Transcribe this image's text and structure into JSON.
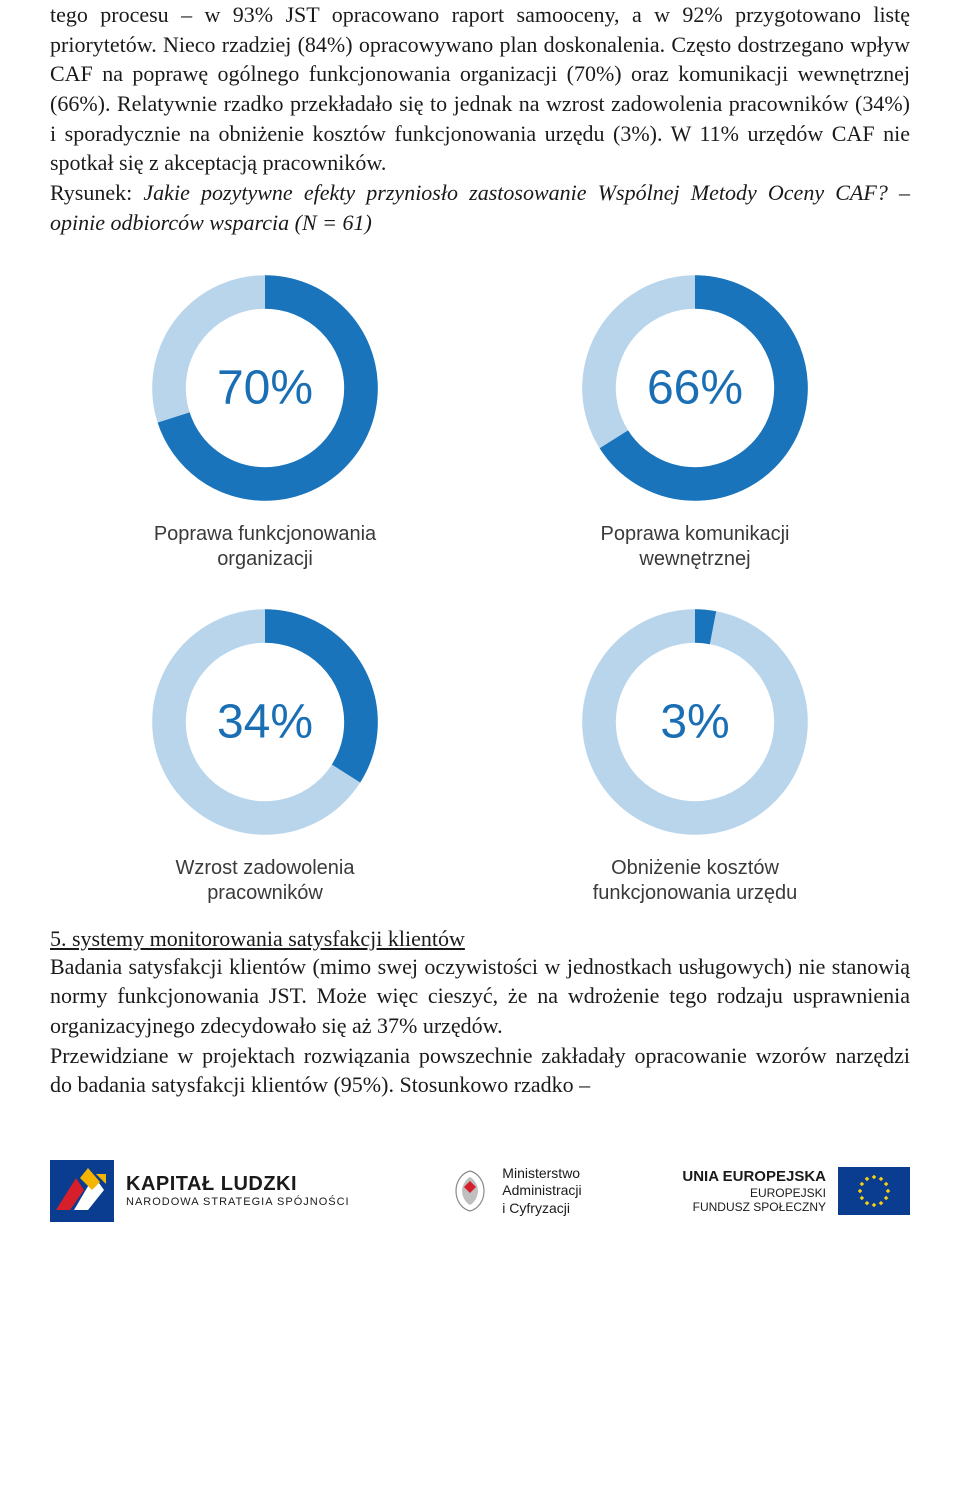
{
  "paragraph1": "tego procesu – w 93% JST opracowano raport samooceny, a w 92% przygotowano listę priorytetów. Nieco rzadziej (84%) opracowywano plan doskonalenia. Często dostrzegano wpływ CAF na poprawę ogólnego funkcjonowania organizacji (70%) oraz komunikacji wewnętrznej (66%). Relatywnie rzadko przekładało się to jednak na wzrost zadowolenia pracowników (34%) i sporadycznie na obniżenie kosztów funkcjonowania urzędu (3%). W 11% urzędów CAF nie spotkał się z akceptacją pracowników.",
  "caption_lead": "Rysunek: ",
  "caption_italic": "Jakie pozytywne efekty przyniosło zastosowanie Wspólnej Metody Oceny CAF? – opinie odbiorców wsparcia (N = 61)",
  "chart": {
    "ring_bg": "#b9d5ec",
    "ring_fg": "#1a74bb",
    "label_color": "#1a6fb4",
    "caption_color": "#3a3a3a",
    "label_fontsize": 48,
    "caption_fontsize": 20,
    "donut_size": 240,
    "ring_thickness": 30,
    "items": [
      {
        "value": 70,
        "label": "70%",
        "caption": "Poprawa funkcjonowania organizacji"
      },
      {
        "value": 66,
        "label": "66%",
        "caption": "Poprawa komunikacji wewnętrznej"
      },
      {
        "value": 34,
        "label": "34%",
        "caption": "Wzrost zadowolenia pracowników"
      },
      {
        "value": 3,
        "label": "3%",
        "caption": "Obniżenie kosztów funkcjonowania urzędu"
      }
    ]
  },
  "section5_head": "5. systemy monitorowania satysfakcji klientów",
  "paragraph2": "Badania satysfakcji klientów (mimo swej oczywistości w jednostkach usługowych) nie stanowią normy funkcjonowania JST. Może więc cieszyć, że na wdrożenie tego rodzaju usprawnienia organizacyjnego zdecydowało się aż 37% urzędów.",
  "paragraph3": "Przewidziane w projektach rozwiązania powszechnie zakładały opracowanie wzorów narzędzi do badania satysfakcji klientów (95%). Stosunkowo rzadko –",
  "footer": {
    "kl_title": "KAPITAŁ LUDZKI",
    "kl_sub": "NARODOWA STRATEGIA SPÓJNOŚCI",
    "min_line1": "Ministerstwo",
    "min_line2": "Administracji",
    "min_line3": "i Cyfryzacji",
    "eu_title": "UNIA EUROPEJSKA",
    "eu_sub1": "EUROPEJSKI",
    "eu_sub2": "FUNDUSZ SPOŁECZNY",
    "eu_flag_bg": "#0a3c8f",
    "eu_star": "#f8cf12"
  }
}
